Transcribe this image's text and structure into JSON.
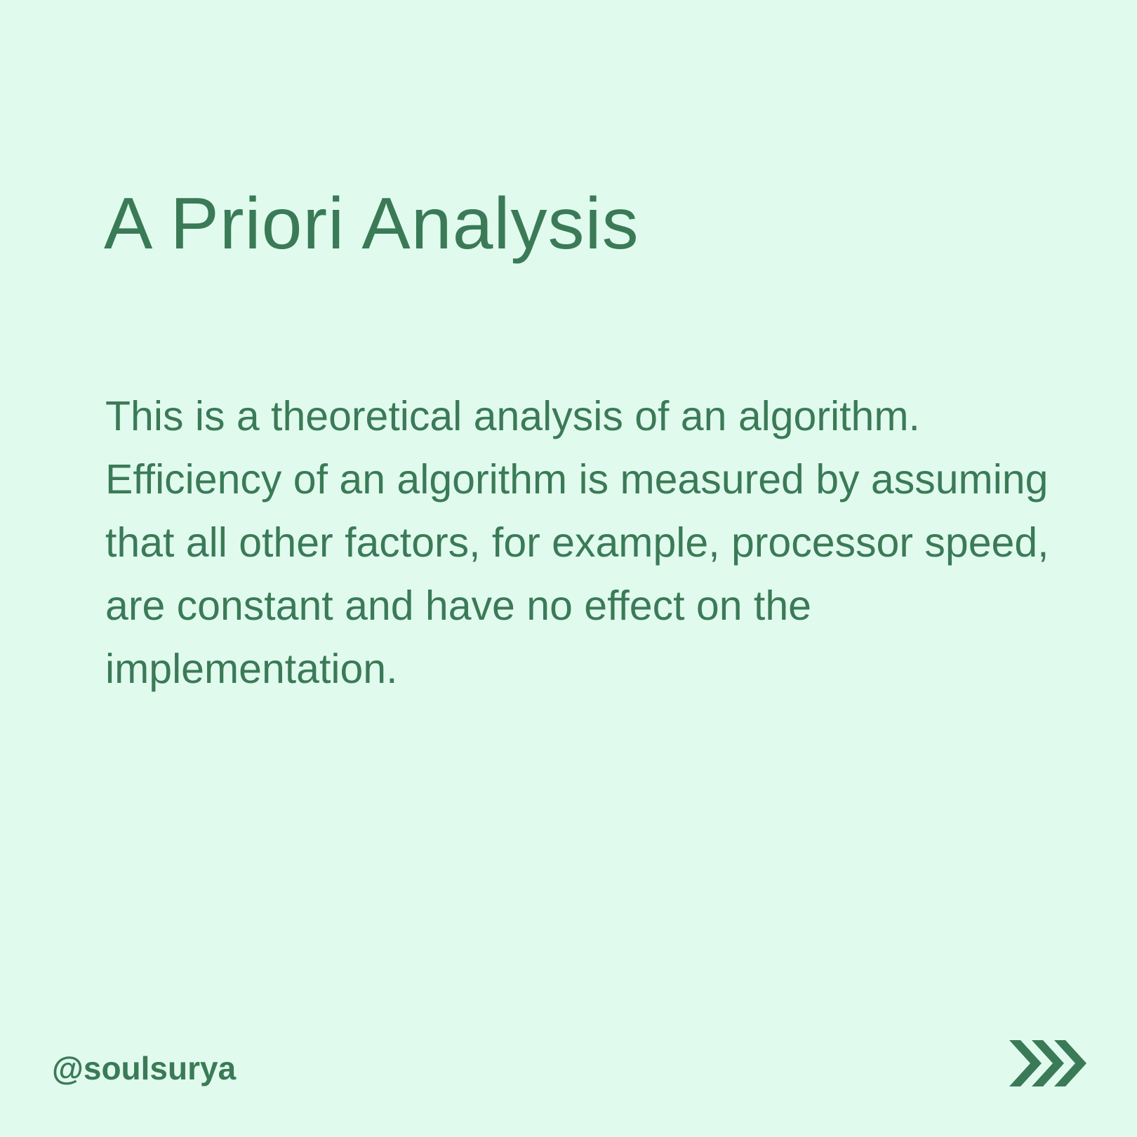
{
  "slide": {
    "title": "A Priori Analysis",
    "body": "This is a theoretical analysis of an algorithm. Efficiency of an algorithm is measured by assuming that all other factors, for example, processor speed, are constant and have no effect on the implementation.",
    "handle": "@soulsurya",
    "next_icon": "triple-chevron-right-icon"
  },
  "colors": {
    "background": "#e0fbee",
    "text": "#3b7a57"
  }
}
